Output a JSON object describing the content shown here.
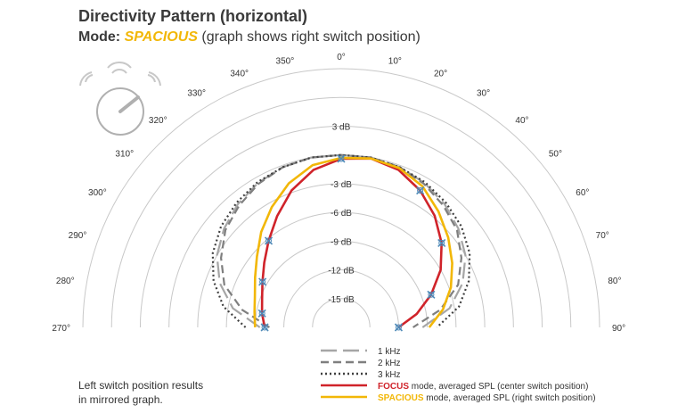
{
  "header": {
    "title": "Directivity Pattern (horizontal)",
    "mode_label": "Mode:",
    "mode_value": "SPACIOUS",
    "mode_note": "(graph shows right switch position)"
  },
  "note": {
    "line1": "Left switch position results",
    "line2": "in mirrored graph."
  },
  "colors": {
    "grid": "#c8c8c8",
    "focus": "#d0232a",
    "spacious": "#f2b707",
    "khz1": "#a6a6a6",
    "khz2": "#7f7f7f",
    "khz3": "#404040",
    "marker": "#4f8ab8"
  },
  "chart_data": {
    "type": "polar",
    "angle_ticks": [
      "270°",
      "280°",
      "290°",
      "300°",
      "310°",
      "320°",
      "330°",
      "340°",
      "350°",
      "0°",
      "10°",
      "20°",
      "30°",
      "40°",
      "50°",
      "60°",
      "70°",
      "80°",
      "90°"
    ],
    "angles": [
      -90,
      -80,
      -70,
      -60,
      -50,
      -40,
      -30,
      -20,
      -10,
      0,
      10,
      20,
      30,
      40,
      50,
      60,
      70,
      80,
      90
    ],
    "radial_labels": [
      "3 dB",
      "-3 dB",
      "-6 dB",
      "-9 dB",
      "-12 dB",
      "-15 dB"
    ],
    "radial_values": [
      3,
      -3,
      -6,
      -9,
      -12,
      -15
    ],
    "rlim": [
      -18,
      9
    ],
    "series": [
      {
        "name": "1 kHz",
        "key": "khz1",
        "style": "long-dash",
        "values": [
          -9.5,
          -6.5,
          -4.5,
          -3.0,
          -2.0,
          -1.2,
          -0.6,
          -0.2,
          0,
          0,
          0,
          -0.2,
          -0.6,
          -1.2,
          -2.0,
          -3.0,
          -4.5,
          -6.5,
          -9.5
        ]
      },
      {
        "name": "2 kHz",
        "key": "khz2",
        "style": "dash",
        "values": [
          -10.5,
          -7.5,
          -5.0,
          -3.5,
          -2.2,
          -1.4,
          -0.7,
          -0.2,
          0,
          0,
          0,
          -0.2,
          -0.7,
          -1.4,
          -2.2,
          -3.5,
          -5.0,
          -7.5,
          -10.5
        ]
      },
      {
        "name": "3 kHz",
        "key": "khz3",
        "style": "dot",
        "values": [
          -8.0,
          -5.5,
          -3.8,
          -2.5,
          -1.6,
          -1.0,
          -0.5,
          -0.2,
          0,
          0,
          0,
          -0.2,
          -0.5,
          -1.0,
          -1.6,
          -2.5,
          -3.8,
          -5.5,
          -8.0
        ]
      },
      {
        "name": "FOCUS mode, averaged SPL (center switch position)",
        "key": "focus",
        "style": "solid",
        "legend_bold": "FOCUS",
        "legend_rest": " mode, averaged SPL (center switch position)",
        "values": [
          -10.0,
          -9.6,
          -9.2,
          -8.5,
          -7.5,
          -6.2,
          -4.6,
          -2.8,
          -1.3,
          -0.4,
          -0.1,
          -0.5,
          -1.5,
          -2.8,
          -4.3,
          -6.0,
          -8.0,
          -10.0,
          -12.0
        ]
      },
      {
        "name": "SPACIOUS mode, averaged SPL (right switch position)",
        "key": "spacious",
        "style": "solid",
        "legend_bold": "SPACIOUS",
        "legend_rest": " mode, averaged SPL (right switch position)",
        "values": [
          -9.0,
          -8.8,
          -8.4,
          -7.6,
          -6.5,
          -5.0,
          -3.5,
          -2.0,
          -0.8,
          -0.3,
          -0.1,
          -0.3,
          -1.0,
          -2.2,
          -3.4,
          -4.6,
          -5.8,
          -7.2,
          -8.8
        ]
      }
    ],
    "markers": [
      {
        "angle": -90,
        "value": -10.0
      },
      {
        "angle": -80,
        "value": -9.6
      },
      {
        "angle": -60,
        "value": -8.5
      },
      {
        "angle": -40,
        "value": -6.2
      },
      {
        "angle": 0,
        "value": -0.4
      },
      {
        "angle": 30,
        "value": -1.5
      },
      {
        "angle": 50,
        "value": -4.3
      },
      {
        "angle": 70,
        "value": -8.0
      },
      {
        "angle": 90,
        "value": -12.0
      }
    ],
    "legend_position": "bottom-center"
  }
}
